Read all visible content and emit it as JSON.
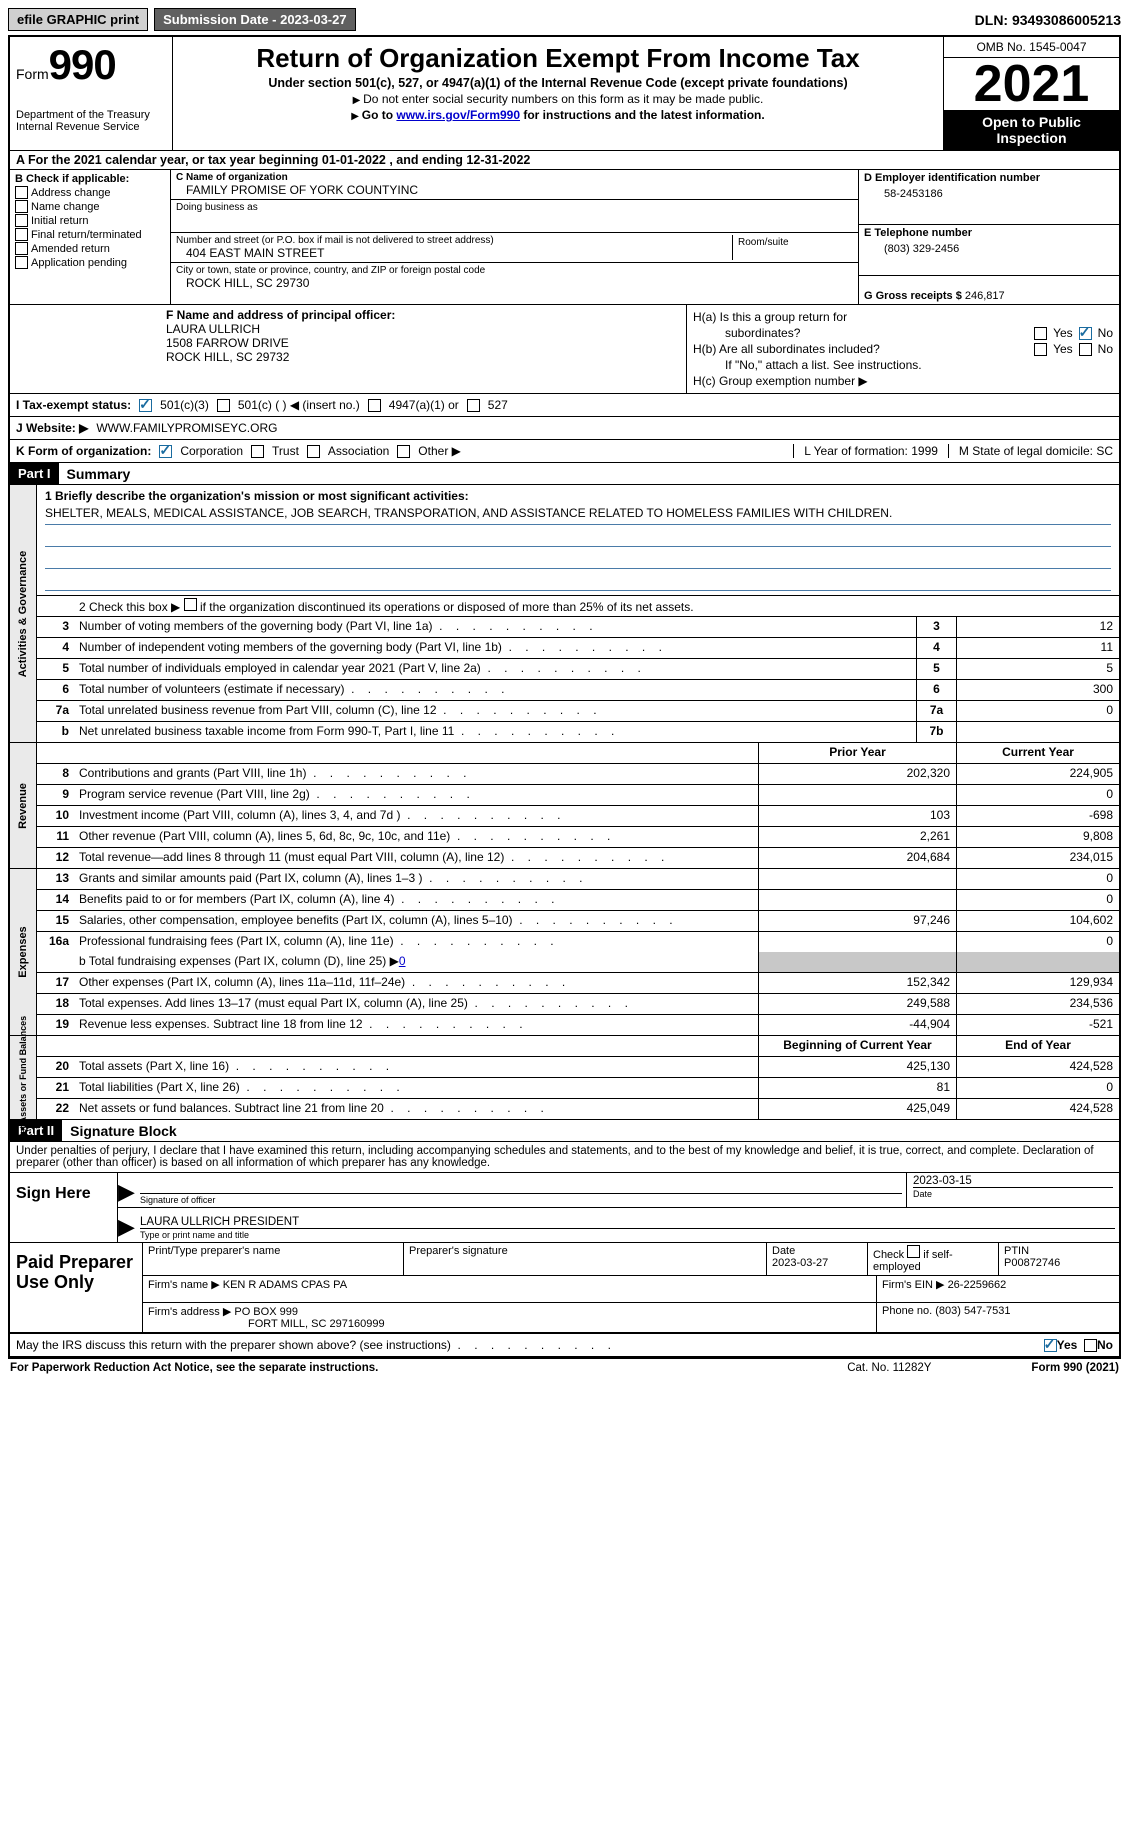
{
  "topbar": {
    "efile": "efile GRAPHIC print",
    "submission": "Submission Date - 2023-03-27",
    "dln_label": "DLN:",
    "dln": "93493086005213"
  },
  "header": {
    "form_label": "Form",
    "form_num": "990",
    "dept": "Department of the Treasury",
    "irs": "Internal Revenue Service",
    "title": "Return of Organization Exempt From Income Tax",
    "subtitle": "Under section 501(c), 527, or 4947(a)(1) of the Internal Revenue Code (except private foundations)",
    "note1": "Do not enter social security numbers on this form as it may be made public.",
    "note2_pre": "Go to ",
    "note2_link": "www.irs.gov/Form990",
    "note2_post": " for instructions and the latest information.",
    "omb": "OMB No. 1545-0047",
    "year": "2021",
    "open": "Open to Public Inspection"
  },
  "section_a": {
    "text_pre": "A For the 2021 calendar year, or tax year beginning ",
    "begin": "01-01-2022",
    "mid": "   , and ending ",
    "end": "12-31-2022"
  },
  "b": {
    "header": "B Check if applicable:",
    "items": [
      "Address change",
      "Name change",
      "Initial return",
      "Final return/terminated",
      "Amended return",
      "Application pending"
    ]
  },
  "c": {
    "name_label": "C Name of organization",
    "name": "FAMILY PROMISE OF YORK COUNTYINC",
    "dba_label": "Doing business as",
    "addr_label": "Number and street (or P.O. box if mail is not delivered to street address)",
    "room_label": "Room/suite",
    "addr": "404 EAST MAIN STREET",
    "city_label": "City or town, state or province, country, and ZIP or foreign postal code",
    "city": "ROCK HILL, SC  29730"
  },
  "d": {
    "ein_label": "D Employer identification number",
    "ein": "58-2453186",
    "phone_label": "E Telephone number",
    "phone": "(803) 329-2456",
    "gross_label": "G Gross receipts $",
    "gross": "246,817"
  },
  "f": {
    "label": "F Name and address of principal officer:",
    "name": "LAURA ULLRICH",
    "addr1": "1508 FARROW DRIVE",
    "addr2": "ROCK HILL, SC  29732"
  },
  "h": {
    "a_label1": "H(a)  Is this a group return for",
    "a_label2": "subordinates?",
    "b_label1": "H(b)  Are all subordinates included?",
    "b_note": "If \"No,\" attach a list. See instructions.",
    "c_label": "H(c)  Group exemption number ▶",
    "yes": "Yes",
    "no": "No"
  },
  "i": {
    "label": "I   Tax-exempt status:",
    "opts": [
      "501(c)(3)",
      "501(c) (  ) ◀ (insert no.)",
      "4947(a)(1) or",
      "527"
    ]
  },
  "j": {
    "label": "J   Website: ▶",
    "url": "WWW.FAMILYPROMISEYC.ORG"
  },
  "k": {
    "label": "K Form of organization:",
    "opts": [
      "Corporation",
      "Trust",
      "Association",
      "Other ▶"
    ],
    "l": "L Year of formation: 1999",
    "m": "M State of legal domicile: SC"
  },
  "parts": {
    "p1": "Part I",
    "p1_title": "Summary",
    "p2": "Part II",
    "p2_title": "Signature Block"
  },
  "sides": {
    "s1": "Activities & Governance",
    "s2": "Revenue",
    "s3": "Expenses",
    "s4": "Net Assets or Fund Balances"
  },
  "summary": {
    "l1_label": "1  Briefly describe the organization's mission or most significant activities:",
    "l1_text": "SHELTER, MEALS, MEDICAL ASSISTANCE, JOB SEARCH, TRANSPORATION, AND ASSISTANCE RELATED TO HOMELESS FAMILIES WITH CHILDREN.",
    "l2_pre": "2   Check this box ▶ ",
    "l2_post": " if the organization discontinued its operations or disposed of more than 25% of its net assets.",
    "rows_gov": [
      {
        "n": "3",
        "d": "Number of voting members of the governing body (Part VI, line 1a)",
        "b": "3",
        "v": "12"
      },
      {
        "n": "4",
        "d": "Number of independent voting members of the governing body (Part VI, line 1b)",
        "b": "4",
        "v": "11"
      },
      {
        "n": "5",
        "d": "Total number of individuals employed in calendar year 2021 (Part V, line 2a)",
        "b": "5",
        "v": "5"
      },
      {
        "n": "6",
        "d": "Total number of volunteers (estimate if necessary)",
        "b": "6",
        "v": "300"
      },
      {
        "n": "7a",
        "d": "Total unrelated business revenue from Part VIII, column (C), line 12",
        "b": "7a",
        "v": "0"
      },
      {
        "n": "b",
        "d": "Net unrelated business taxable income from Form 990-T, Part I, line 11",
        "b": "7b",
        "v": ""
      }
    ],
    "col_hdr": {
      "prior": "Prior Year",
      "current": "Current Year"
    },
    "rows_rev": [
      {
        "n": "8",
        "d": "Contributions and grants (Part VIII, line 1h)",
        "p": "202,320",
        "c": "224,905"
      },
      {
        "n": "9",
        "d": "Program service revenue (Part VIII, line 2g)",
        "p": "",
        "c": "0"
      },
      {
        "n": "10",
        "d": "Investment income (Part VIII, column (A), lines 3, 4, and 7d )",
        "p": "103",
        "c": "-698"
      },
      {
        "n": "11",
        "d": "Other revenue (Part VIII, column (A), lines 5, 6d, 8c, 9c, 10c, and 11e)",
        "p": "2,261",
        "c": "9,808"
      },
      {
        "n": "12",
        "d": "Total revenue—add lines 8 through 11 (must equal Part VIII, column (A), line 12)",
        "p": "204,684",
        "c": "234,015"
      }
    ],
    "rows_exp": [
      {
        "n": "13",
        "d": "Grants and similar amounts paid (Part IX, column (A), lines 1–3 )",
        "p": "",
        "c": "0"
      },
      {
        "n": "14",
        "d": "Benefits paid to or for members (Part IX, column (A), line 4)",
        "p": "",
        "c": "0"
      },
      {
        "n": "15",
        "d": "Salaries, other compensation, employee benefits (Part IX, column (A), lines 5–10)",
        "p": "97,246",
        "c": "104,602"
      },
      {
        "n": "16a",
        "d": "Professional fundraising fees (Part IX, column (A), line 11e)",
        "p": "",
        "c": "0"
      }
    ],
    "l16b_pre": "b  Total fundraising expenses (Part IX, column (D), line 25) ▶",
    "l16b_val": "0",
    "rows_exp2": [
      {
        "n": "17",
        "d": "Other expenses (Part IX, column (A), lines 11a–11d, 11f–24e)",
        "p": "152,342",
        "c": "129,934"
      },
      {
        "n": "18",
        "d": "Total expenses. Add lines 13–17 (must equal Part IX, column (A), line 25)",
        "p": "249,588",
        "c": "234,536"
      },
      {
        "n": "19",
        "d": "Revenue less expenses. Subtract line 18 from line 12",
        "p": "-44,904",
        "c": "-521"
      }
    ],
    "col_hdr2": {
      "begin": "Beginning of Current Year",
      "end": "End of Year"
    },
    "rows_net": [
      {
        "n": "20",
        "d": "Total assets (Part X, line 16)",
        "p": "425,130",
        "c": "424,528"
      },
      {
        "n": "21",
        "d": "Total liabilities (Part X, line 26)",
        "p": "81",
        "c": "0"
      },
      {
        "n": "22",
        "d": "Net assets or fund balances. Subtract line 21 from line 20",
        "p": "425,049",
        "c": "424,528"
      }
    ]
  },
  "sig": {
    "intro": "Under penalties of perjury, I declare that I have examined this return, including accompanying schedules and statements, and to the best of my knowledge and belief, it is true, correct, and complete. Declaration of preparer (other than officer) is based on all information of which preparer has any knowledge.",
    "sign_here": "Sign Here",
    "sig_officer": "Signature of officer",
    "date_lbl": "Date",
    "sig_date": "2023-03-15",
    "name_title": "LAURA ULLRICH  PRESIDENT",
    "name_title_lbl": "Type or print name and title",
    "paid": "Paid Preparer Use Only",
    "prep_name_lbl": "Print/Type preparer's name",
    "prep_sig_lbl": "Preparer's signature",
    "prep_date_lbl": "Date",
    "prep_date": "2023-03-27",
    "self_emp": "Check         if self-employed",
    "ptin_lbl": "PTIN",
    "ptin": "P00872746",
    "firm_name_lbl": "Firm's name      ▶",
    "firm_name": "KEN R ADAMS CPAS PA",
    "firm_ein_lbl": "Firm's EIN ▶",
    "firm_ein": "26-2259662",
    "firm_addr_lbl": "Firm's address ▶",
    "firm_addr1": "PO BOX 999",
    "firm_addr2": "FORT MILL, SC  297160999",
    "firm_phone_lbl": "Phone no.",
    "firm_phone": "(803) 547-7531",
    "discuss": "May the IRS discuss this return with the preparer shown above? (see instructions)"
  },
  "footer": {
    "left": "For Paperwork Reduction Act Notice, see the separate instructions.",
    "mid": "Cat. No. 11282Y",
    "right": "Form 990 (2021)"
  }
}
